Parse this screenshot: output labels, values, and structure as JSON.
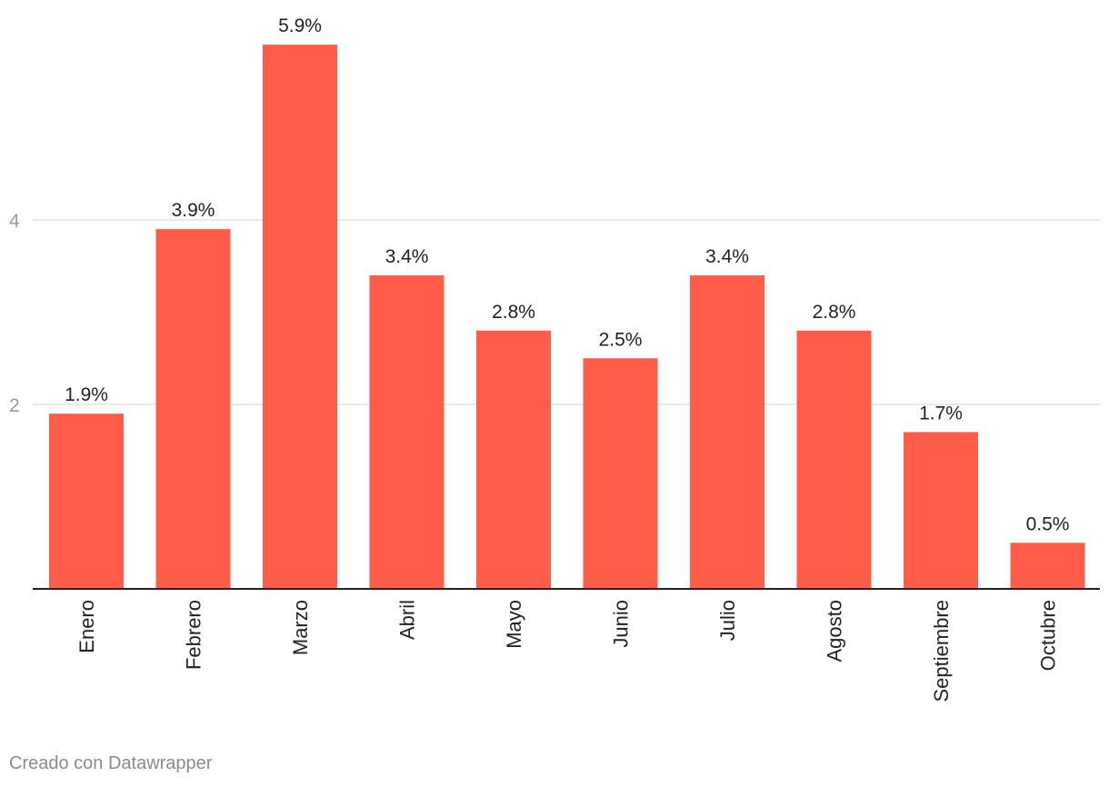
{
  "chart_data": {
    "type": "bar",
    "categories": [
      "Enero",
      "Febrero",
      "Marzo",
      "Abril",
      "Mayo",
      "Junio",
      "Julio",
      "Agosto",
      "Septiembre",
      "Octubre"
    ],
    "values": [
      1.9,
      3.9,
      5.9,
      3.4,
      2.8,
      2.5,
      3.4,
      2.8,
      1.7,
      0.5
    ],
    "value_labels": [
      "1.9%",
      "3.9%",
      "5.9%",
      "3.4%",
      "2.8%",
      "2.5%",
      "3.4%",
      "2.8%",
      "1.7%",
      "0.5%"
    ],
    "y_ticks": [
      2,
      4
    ],
    "y_tick_labels": [
      "2",
      "4"
    ],
    "ylim": [
      0,
      6
    ],
    "grid": true,
    "legend": "none",
    "title": "",
    "xlabel": "",
    "ylabel": "",
    "bar_color": "#ff5d4a",
    "grid_color": "#e4e4e4",
    "baseline_color": "#222222"
  },
  "footer": {
    "credit": "Creado con Datawrapper"
  }
}
